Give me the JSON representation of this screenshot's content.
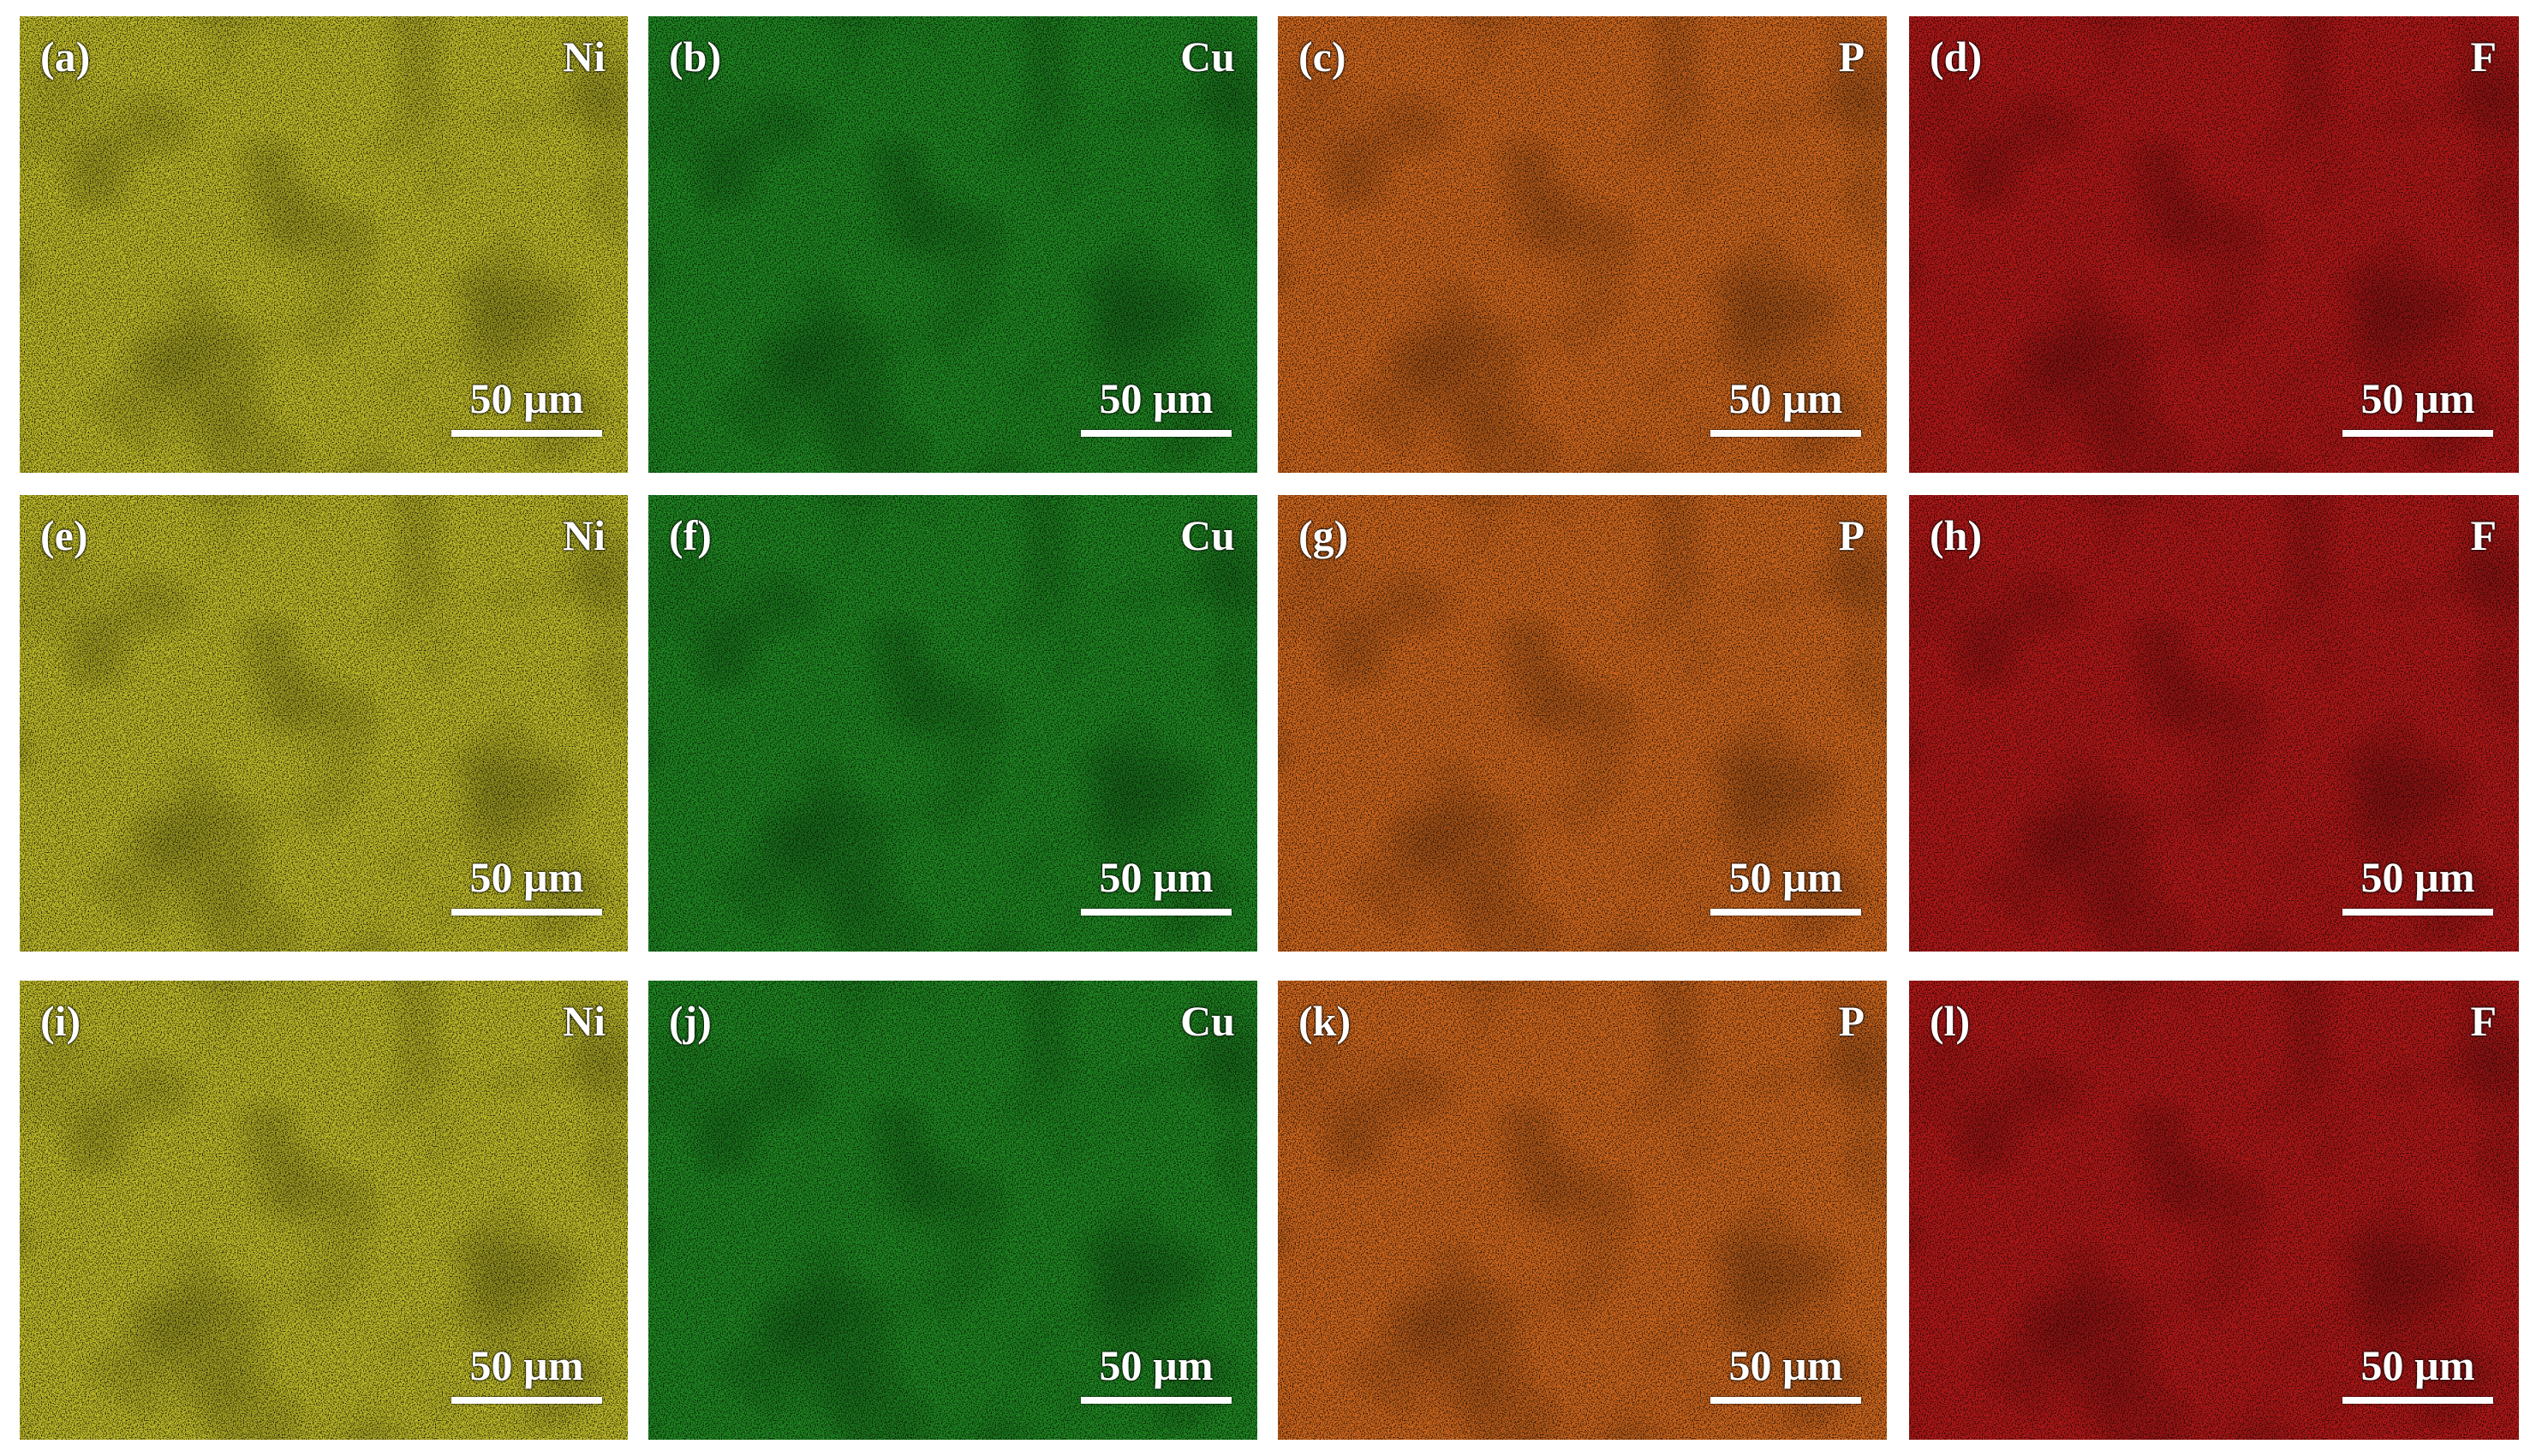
{
  "panels": [
    {
      "label": "(a)",
      "element": "Ni",
      "scale_bar": "50 µm"
    },
    {
      "label": "(b)",
      "element": "Cu",
      "scale_bar": "50 µm"
    },
    {
      "label": "(c)",
      "element": "P",
      "scale_bar": "50 µm"
    },
    {
      "label": "(d)",
      "element": "F",
      "scale_bar": "50 µm"
    },
    {
      "label": "(e)",
      "element": "Ni",
      "scale_bar": "50 µm"
    },
    {
      "label": "(f)",
      "element": "Cu",
      "scale_bar": "50 µm"
    },
    {
      "label": "(g)",
      "element": "P",
      "scale_bar": "50 µm"
    },
    {
      "label": "(h)",
      "element": "F",
      "scale_bar": "50 µm"
    },
    {
      "label": "(i)",
      "element": "Ni",
      "scale_bar": "50 µm"
    },
    {
      "label": "(j)",
      "element": "Cu",
      "scale_bar": "50 µm"
    },
    {
      "label": "(k)",
      "element": "P",
      "scale_bar": "50 µm"
    },
    {
      "label": "(l)",
      "element": "F",
      "scale_bar": "50 µm"
    }
  ]
}
